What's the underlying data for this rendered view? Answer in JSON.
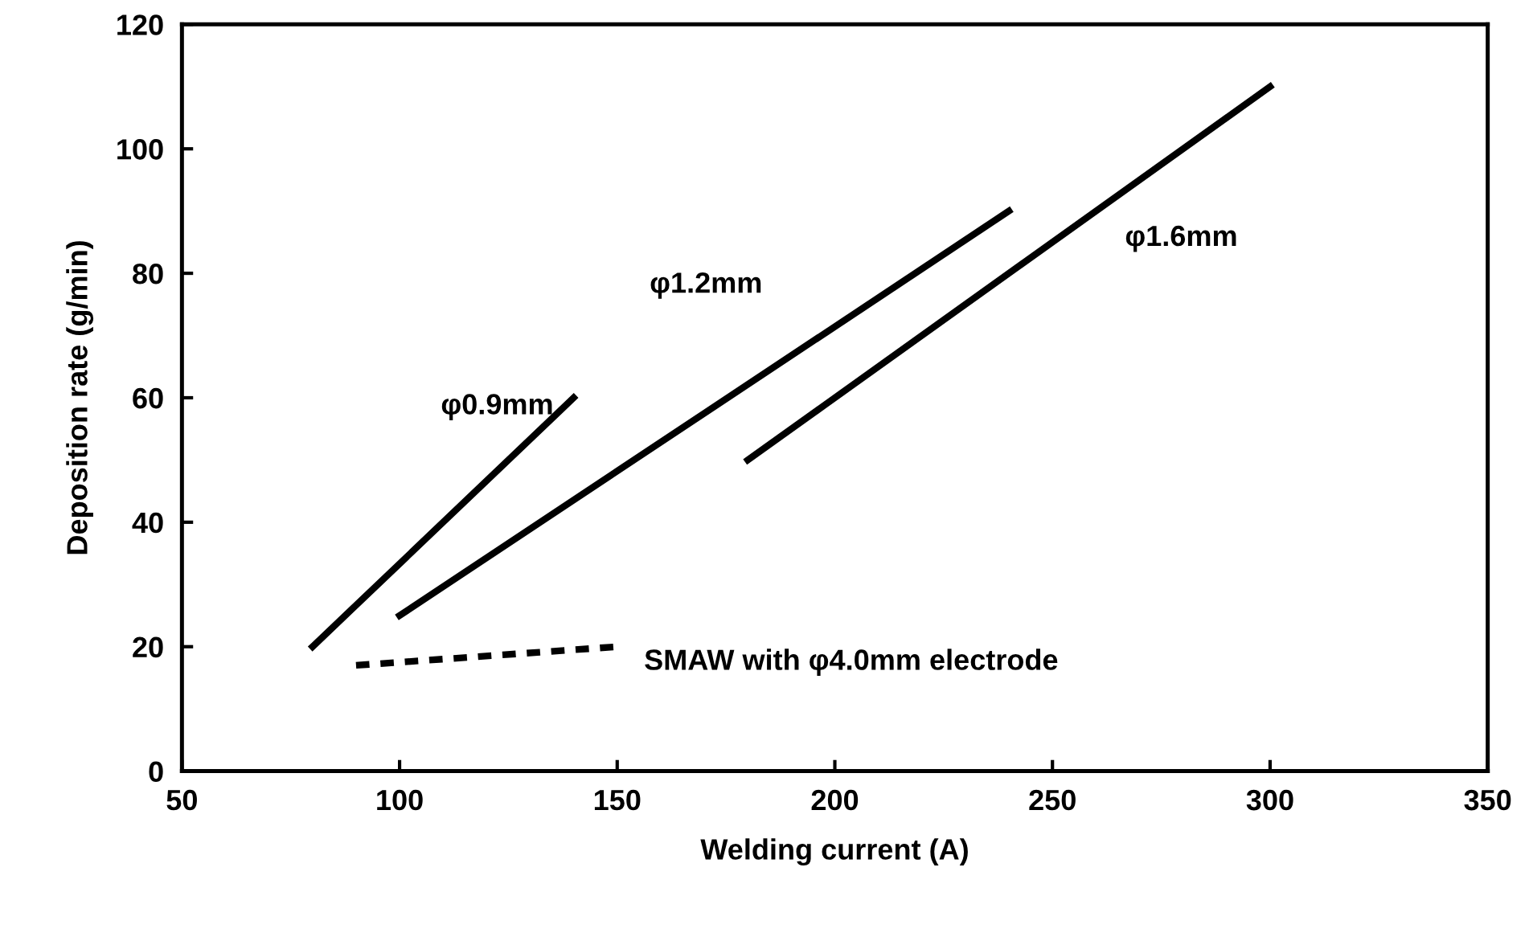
{
  "chart_data": {
    "type": "line",
    "xlabel": "Welding current (A)",
    "ylabel": "Deposition rate (g/min)",
    "series": [
      {
        "name": "φ0.9mm",
        "color": "#000000",
        "x": [
          80,
          140
        ],
        "values": [
          20,
          60
        ],
        "line_style": "solid"
      },
      {
        "name": "φ1.2mm",
        "color": "#000000",
        "x": [
          100,
          240
        ],
        "values": [
          25,
          90
        ],
        "line_style": "solid"
      },
      {
        "name": "φ1.6mm",
        "color": "#000000",
        "x": [
          180,
          300
        ],
        "values": [
          50,
          110
        ],
        "line_style": "solid"
      },
      {
        "name": "SMAW with φ4.0mm electrode",
        "color": "#000000",
        "x": [
          90,
          150
        ],
        "values": [
          17,
          20
        ],
        "line_style": "dashed"
      }
    ],
    "xlim": [
      50,
      350
    ],
    "xticks": [
      50,
      100,
      150,
      200,
      250,
      300,
      350
    ],
    "ylim": [
      0,
      120
    ],
    "yticks": [
      0,
      20,
      40,
      60,
      80,
      100,
      120
    ],
    "grid": false,
    "legend": false,
    "marker": "none"
  }
}
